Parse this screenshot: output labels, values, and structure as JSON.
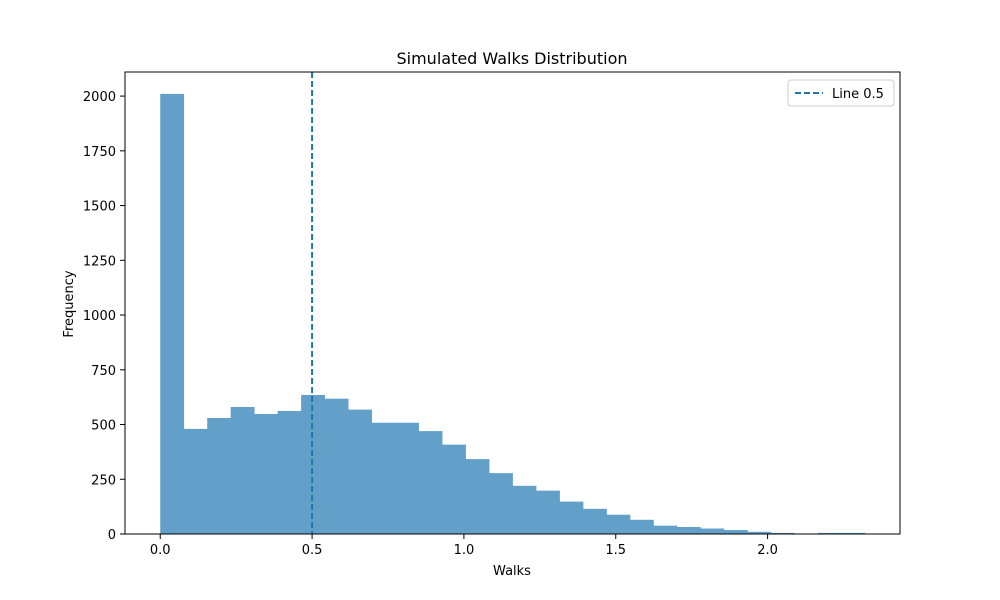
{
  "chart_data": {
    "type": "bar",
    "title": "Simulated Walks Distribution",
    "xlabel": "Walks",
    "ylabel": "Frequency",
    "xlim": [
      -0.116,
      2.436
    ],
    "ylim": [
      0,
      2110
    ],
    "x_ticks": [
      0.0,
      0.5,
      1.0,
      1.5,
      2.0
    ],
    "x_tick_labels": [
      "0.0",
      "0.5",
      "1.0",
      "1.5",
      "2.0"
    ],
    "y_ticks": [
      0,
      250,
      500,
      750,
      1000,
      1250,
      1500,
      1750,
      2000
    ],
    "y_tick_labels": [
      "0",
      "250",
      "500",
      "750",
      "1000",
      "1250",
      "1500",
      "1750",
      "2000"
    ],
    "bin_edges": [
      0.0,
      0.0773,
      0.1547,
      0.232,
      0.3093,
      0.3867,
      0.464,
      0.5413,
      0.6187,
      0.696,
      0.7733,
      0.8507,
      0.928,
      1.0053,
      1.0827,
      1.16,
      1.2373,
      1.3147,
      1.392,
      1.4693,
      1.5467,
      1.624,
      1.7013,
      1.7787,
      1.856,
      1.9333,
      2.0107,
      2.088,
      2.1653,
      2.2427,
      2.32
    ],
    "values": [
      2010,
      480,
      530,
      580,
      548,
      562,
      635,
      618,
      568,
      508,
      508,
      470,
      408,
      342,
      278,
      220,
      198,
      148,
      115,
      88,
      65,
      38,
      32,
      25,
      18,
      10,
      5,
      2,
      5,
      5
    ],
    "bar_color": "#62a0ca",
    "grid": false,
    "vline": {
      "x": 0.5,
      "style": "dashed",
      "color": "#1f77b4",
      "label": "Line 0.5"
    },
    "legend": {
      "placement": "top-right",
      "entries": [
        "Line 0.5"
      ]
    }
  }
}
